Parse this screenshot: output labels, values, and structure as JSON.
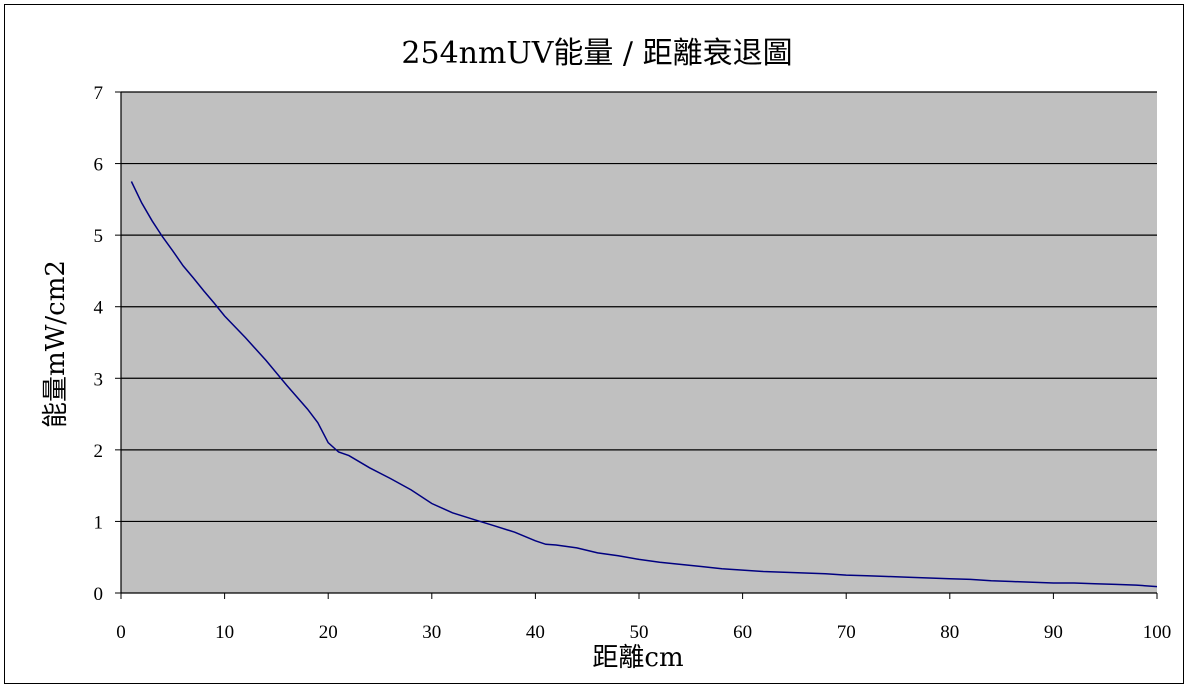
{
  "chart_data": {
    "type": "line",
    "title": "254nmUV能量 / 距離衰退圖",
    "xlabel": "距離cm",
    "ylabel": "能量mW/cm2",
    "xlim": [
      0,
      100
    ],
    "ylim": [
      0,
      7
    ],
    "x_ticks": [
      "0",
      "10",
      "20",
      "30",
      "40",
      "50",
      "60",
      "70",
      "80",
      "90",
      "100"
    ],
    "y_ticks": [
      "0",
      "1",
      "2",
      "3",
      "4",
      "5",
      "6",
      "7"
    ],
    "grid": "horizontal",
    "legend": "none",
    "colors": {
      "plot_bg": "#c0c0c0",
      "line": "#000080",
      "grid": "#000000"
    },
    "series": [
      {
        "x": [
          1,
          2,
          3,
          4,
          5,
          6,
          7,
          8,
          9,
          10,
          12,
          14,
          16,
          18,
          19,
          20,
          21,
          22,
          24,
          26,
          28,
          30,
          32,
          34,
          36,
          38,
          40,
          41,
          42,
          44,
          46,
          48,
          50,
          52,
          54,
          56,
          58,
          60,
          62,
          64,
          66,
          68,
          70,
          72,
          74,
          76,
          78,
          80,
          82,
          84,
          86,
          88,
          90,
          92,
          94,
          96,
          98,
          100
        ],
        "y": [
          5.75,
          5.45,
          5.2,
          4.98,
          4.78,
          4.57,
          4.4,
          4.22,
          4.05,
          3.87,
          3.57,
          3.25,
          2.9,
          2.57,
          2.38,
          2.1,
          1.97,
          1.92,
          1.75,
          1.6,
          1.44,
          1.25,
          1.12,
          1.03,
          0.94,
          0.85,
          0.73,
          0.68,
          0.67,
          0.63,
          0.56,
          0.52,
          0.47,
          0.43,
          0.4,
          0.37,
          0.34,
          0.32,
          0.3,
          0.29,
          0.28,
          0.27,
          0.25,
          0.24,
          0.23,
          0.22,
          0.21,
          0.2,
          0.19,
          0.17,
          0.16,
          0.15,
          0.14,
          0.14,
          0.13,
          0.12,
          0.11,
          0.09
        ]
      }
    ]
  }
}
